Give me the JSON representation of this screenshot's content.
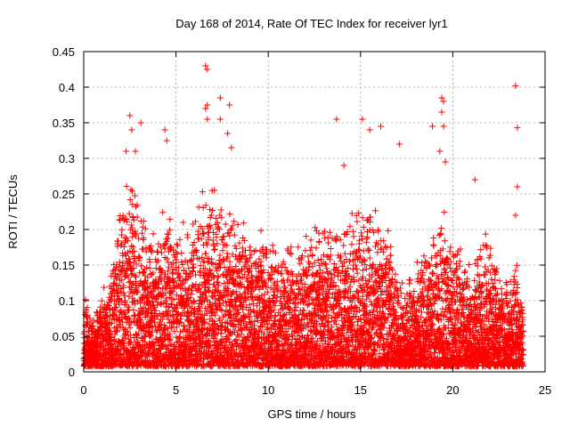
{
  "chart_data": {
    "type": "scatter",
    "title": "Day 168 of 2014, Rate Of TEC Index for receiver lyr1",
    "xlabel": "GPS time / hours",
    "ylabel": "ROTI / TECUs",
    "xlim": [
      0,
      25
    ],
    "ylim": [
      0,
      0.45
    ],
    "xticks": [
      0,
      5,
      10,
      15,
      20,
      25
    ],
    "yticks": [
      0,
      0.05,
      0.1,
      0.15,
      0.2,
      0.25,
      0.3,
      0.35,
      0.4,
      0.45
    ],
    "grid": true,
    "marker": "+",
    "color": "#ff0000",
    "sampling": {
      "x_start": 0.0,
      "x_end": 23.8,
      "x_step": 0.02,
      "points_per_step": 6,
      "baseline_low": 0.02,
      "envelope": [
        {
          "x": 0.0,
          "y": 0.11
        },
        {
          "x": 0.5,
          "y": 0.08
        },
        {
          "x": 1.0,
          "y": 0.12
        },
        {
          "x": 1.5,
          "y": 0.16
        },
        {
          "x": 2.0,
          "y": 0.24
        },
        {
          "x": 2.5,
          "y": 0.3
        },
        {
          "x": 3.0,
          "y": 0.27
        },
        {
          "x": 3.5,
          "y": 0.2
        },
        {
          "x": 4.0,
          "y": 0.21
        },
        {
          "x": 4.5,
          "y": 0.24
        },
        {
          "x": 5.0,
          "y": 0.2
        },
        {
          "x": 5.5,
          "y": 0.22
        },
        {
          "x": 6.0,
          "y": 0.23
        },
        {
          "x": 6.5,
          "y": 0.26
        },
        {
          "x": 7.0,
          "y": 0.28
        },
        {
          "x": 7.5,
          "y": 0.25
        },
        {
          "x": 8.0,
          "y": 0.24
        },
        {
          "x": 8.5,
          "y": 0.22
        },
        {
          "x": 9.0,
          "y": 0.23
        },
        {
          "x": 9.5,
          "y": 0.22
        },
        {
          "x": 10.0,
          "y": 0.2
        },
        {
          "x": 10.5,
          "y": 0.18
        },
        {
          "x": 11.0,
          "y": 0.2
        },
        {
          "x": 11.5,
          "y": 0.19
        },
        {
          "x": 12.0,
          "y": 0.2
        },
        {
          "x": 12.5,
          "y": 0.21
        },
        {
          "x": 13.0,
          "y": 0.22
        },
        {
          "x": 13.5,
          "y": 0.21
        },
        {
          "x": 14.0,
          "y": 0.22
        },
        {
          "x": 14.5,
          "y": 0.23
        },
        {
          "x": 15.0,
          "y": 0.25
        },
        {
          "x": 15.5,
          "y": 0.24
        },
        {
          "x": 16.0,
          "y": 0.23
        },
        {
          "x": 16.5,
          "y": 0.22
        },
        {
          "x": 17.0,
          "y": 0.14
        },
        {
          "x": 17.5,
          "y": 0.13
        },
        {
          "x": 18.0,
          "y": 0.16
        },
        {
          "x": 18.5,
          "y": 0.18
        },
        {
          "x": 19.0,
          "y": 0.2
        },
        {
          "x": 19.5,
          "y": 0.24
        },
        {
          "x": 20.0,
          "y": 0.2
        },
        {
          "x": 20.5,
          "y": 0.18
        },
        {
          "x": 21.0,
          "y": 0.16
        },
        {
          "x": 21.5,
          "y": 0.2
        },
        {
          "x": 22.0,
          "y": 0.19
        },
        {
          "x": 22.5,
          "y": 0.15
        },
        {
          "x": 23.0,
          "y": 0.13
        },
        {
          "x": 23.5,
          "y": 0.16
        },
        {
          "x": 23.8,
          "y": 0.1
        }
      ]
    },
    "outliers": [
      {
        "x": 2.3,
        "y": 0.31
      },
      {
        "x": 2.5,
        "y": 0.36
      },
      {
        "x": 2.6,
        "y": 0.34
      },
      {
        "x": 2.8,
        "y": 0.31
      },
      {
        "x": 3.1,
        "y": 0.35
      },
      {
        "x": 4.4,
        "y": 0.34
      },
      {
        "x": 4.5,
        "y": 0.325
      },
      {
        "x": 6.6,
        "y": 0.43
      },
      {
        "x": 6.7,
        "y": 0.425
      },
      {
        "x": 6.6,
        "y": 0.37
      },
      {
        "x": 6.7,
        "y": 0.375
      },
      {
        "x": 6.7,
        "y": 0.355
      },
      {
        "x": 7.4,
        "y": 0.385
      },
      {
        "x": 7.4,
        "y": 0.355
      },
      {
        "x": 7.9,
        "y": 0.375
      },
      {
        "x": 7.8,
        "y": 0.335
      },
      {
        "x": 8.0,
        "y": 0.315
      },
      {
        "x": 13.7,
        "y": 0.355
      },
      {
        "x": 14.1,
        "y": 0.29
      },
      {
        "x": 15.1,
        "y": 0.355
      },
      {
        "x": 15.5,
        "y": 0.34
      },
      {
        "x": 16.1,
        "y": 0.345
      },
      {
        "x": 17.1,
        "y": 0.32
      },
      {
        "x": 18.9,
        "y": 0.345
      },
      {
        "x": 19.4,
        "y": 0.385
      },
      {
        "x": 19.5,
        "y": 0.38
      },
      {
        "x": 19.4,
        "y": 0.365
      },
      {
        "x": 19.5,
        "y": 0.345
      },
      {
        "x": 19.3,
        "y": 0.31
      },
      {
        "x": 19.6,
        "y": 0.295
      },
      {
        "x": 21.2,
        "y": 0.27
      },
      {
        "x": 23.4,
        "y": 0.402
      },
      {
        "x": 23.5,
        "y": 0.343
      },
      {
        "x": 23.5,
        "y": 0.26
      },
      {
        "x": 23.4,
        "y": 0.22
      }
    ]
  }
}
